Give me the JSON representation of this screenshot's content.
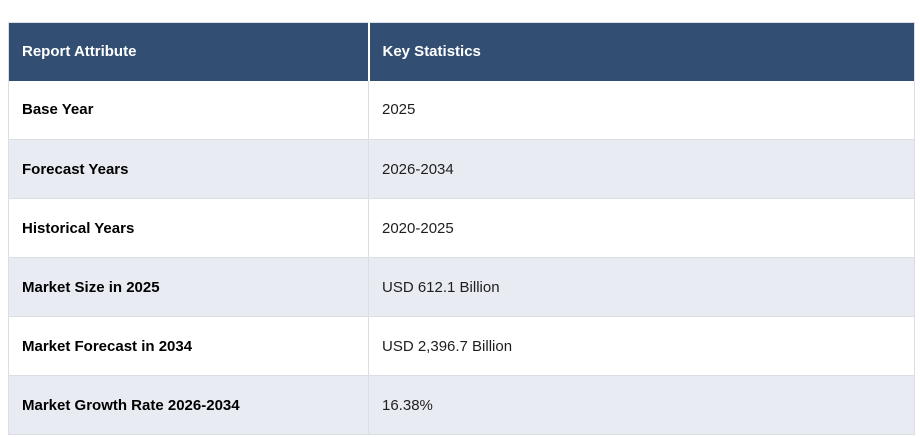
{
  "table": {
    "columns": [
      {
        "label": "Report Attribute"
      },
      {
        "label": "Key Statistics"
      }
    ],
    "rows": [
      {
        "attribute": "Base Year",
        "value": "2025"
      },
      {
        "attribute": "Forecast Years",
        "value": "2026-2034"
      },
      {
        "attribute": "Historical Years",
        "value": "2020-2025"
      },
      {
        "attribute": "Market Size in 2025",
        "value": "USD 612.1 Billion"
      },
      {
        "attribute": "Market Forecast in 2034",
        "value": "USD 2,396.7 Billion"
      },
      {
        "attribute": "Market Growth Rate 2026-2034",
        "value": "16.38%"
      }
    ]
  },
  "colors": {
    "header_bg": "#324F73",
    "row_alt_bg": "#E9EBF3",
    "border": "#DCDEE5",
    "header_text": "#FFFFFF",
    "attribute_text": "#000000",
    "value_text": "#1E1E1E",
    "page_bg": "#FFFFFF"
  }
}
